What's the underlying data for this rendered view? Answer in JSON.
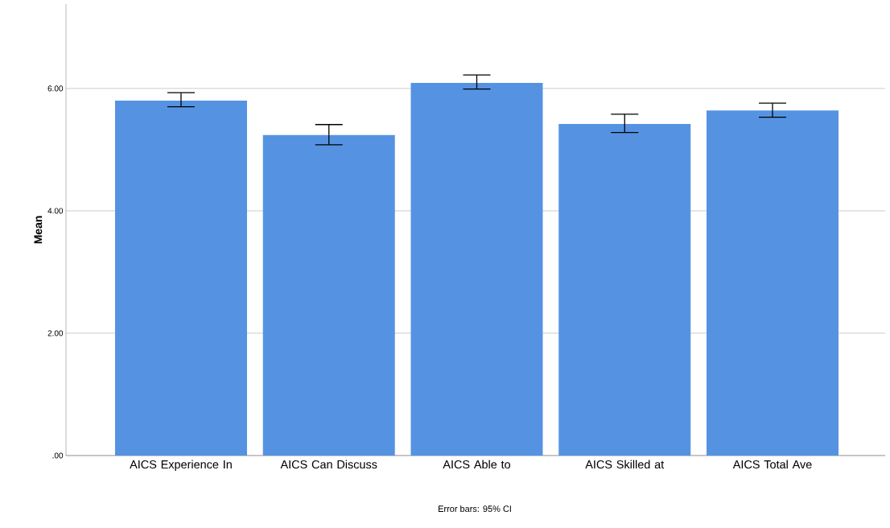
{
  "chart_data": {
    "type": "bar",
    "ylabel": "Mean",
    "categories": [
      "AICS Experience In",
      "AICS Can Discuss",
      "AICS Able to",
      "AICS Skilled at",
      "AICS Total Ave"
    ],
    "values": [
      5.8,
      5.24,
      6.09,
      5.42,
      5.64
    ],
    "errors": [
      [
        5.7,
        5.93
      ],
      [
        5.08,
        5.41
      ],
      [
        5.99,
        6.22
      ],
      [
        5.28,
        5.58
      ],
      [
        5.53,
        5.76
      ]
    ],
    "color": "#5593e2",
    "ylim": [
      0,
      7.38
    ],
    "yticks": [
      {
        "value": 0,
        "label": ".00"
      },
      {
        "value": 2,
        "label": "2.00"
      },
      {
        "value": 4,
        "label": "4.00"
      },
      {
        "value": 6,
        "label": "6.00"
      }
    ],
    "grid": "y",
    "annotations": [
      "Error bars: 95% CI"
    ]
  }
}
